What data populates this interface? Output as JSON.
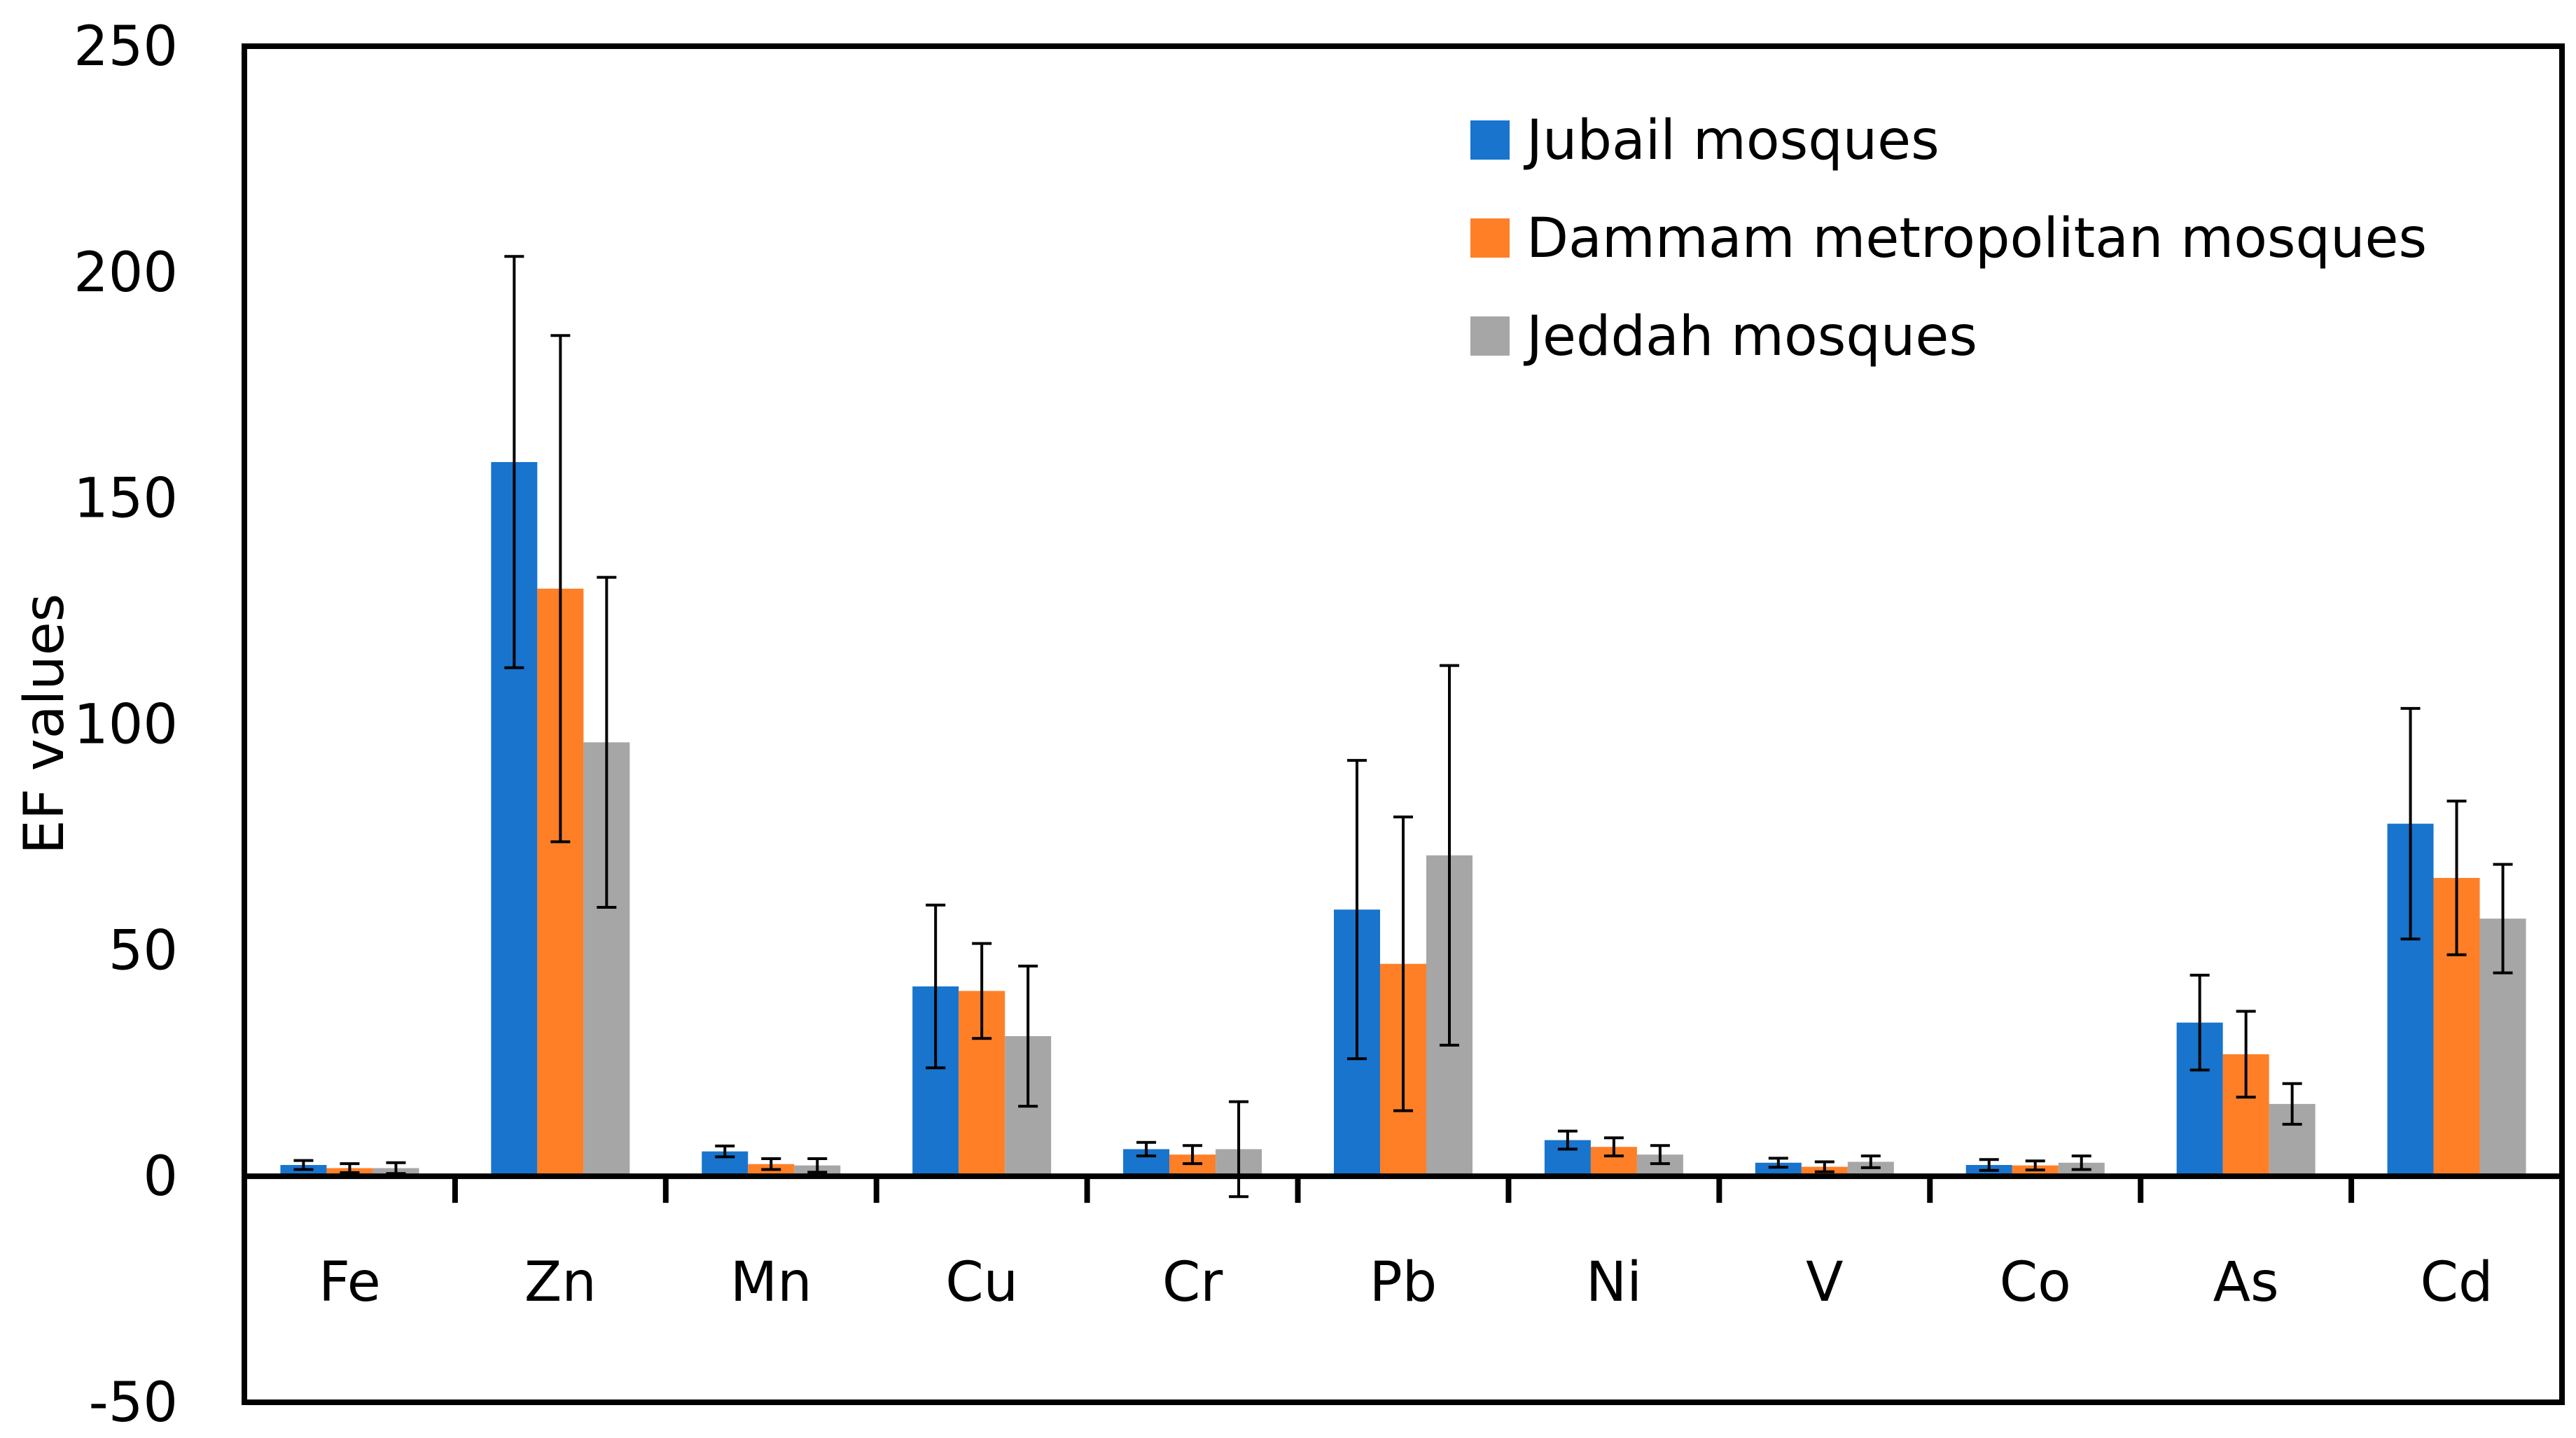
{
  "chart_data": {
    "type": "bar",
    "title": "",
    "xlabel": "",
    "ylabel": "EF values",
    "ylim": [
      -50,
      250
    ],
    "yticks": [
      -50,
      0,
      50,
      100,
      150,
      200,
      250
    ],
    "grid": false,
    "legend_position": "top-right",
    "categories": [
      "Fe",
      "Zn",
      "Mn",
      "Cu",
      "Cr",
      "Pb",
      "Ni",
      "V",
      "Co",
      "As",
      "Cd"
    ],
    "series": [
      {
        "name": "Jubail mosques",
        "color": "#1874cd",
        "values": [
          2.5,
          158,
          5.5,
          42,
          6,
          59,
          8,
          3,
          2.5,
          34,
          78
        ],
        "errors": [
          1,
          45.5,
          1.2,
          18,
          1.5,
          33,
          2,
          1,
          1.2,
          10.5,
          25.5
        ]
      },
      {
        "name": "Dammam metropolitan mosques",
        "color": "#ff7f27",
        "values": [
          1.8,
          130,
          2.7,
          41,
          4.8,
          47,
          6.5,
          2.1,
          2.4,
          27,
          66
        ],
        "errors": [
          1,
          56,
          1.2,
          10.5,
          2,
          32.5,
          2,
          1.1,
          1,
          9.5,
          17
        ]
      },
      {
        "name": "Jeddah mosques",
        "color": "#a6a6a6",
        "values": [
          1.8,
          96,
          2.4,
          31,
          6,
          71,
          4.8,
          3.2,
          3,
          16,
          57
        ],
        "errors": [
          1.2,
          36.5,
          1.5,
          15.5,
          10.5,
          42,
          2,
          1.3,
          1.5,
          4.5,
          12
        ]
      }
    ]
  }
}
